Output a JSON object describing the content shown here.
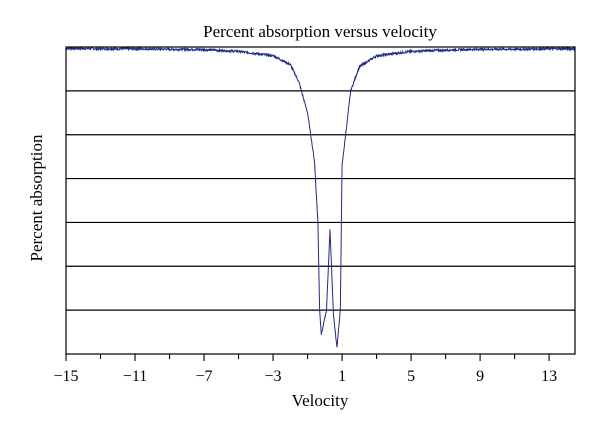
{
  "chart_data": {
    "type": "line",
    "title": "Percent absorption versus velocity",
    "xlabel": "Velocity",
    "ylabel": "Percent absorption",
    "xlim": [
      -15,
      14.5
    ],
    "ylim": [
      0,
      7
    ],
    "x_ticks": [
      -15,
      -11,
      -7,
      -3,
      1,
      5,
      9,
      13
    ],
    "grid": true,
    "legend": "none",
    "series": [
      {
        "color": "#1f2a8a",
        "x": [
          -15,
          -13,
          -11,
          -9,
          -7,
          -5,
          -3,
          -2,
          -1.5,
          -1,
          -0.6,
          -0.4,
          -0.3,
          -0.2,
          0.1,
          0.3,
          0.5,
          0.7,
          0.9,
          1,
          1.5,
          2,
          3,
          5,
          7,
          9,
          11,
          13,
          14.5
        ],
        "y": [
          6.97,
          6.96,
          6.96,
          6.95,
          6.94,
          6.9,
          6.8,
          6.6,
          6.2,
          5.5,
          4.4,
          3.0,
          1.0,
          0.45,
          1.0,
          2.85,
          0.9,
          0.15,
          1.0,
          4.3,
          6.0,
          6.55,
          6.8,
          6.9,
          6.93,
          6.95,
          6.95,
          6.96,
          6.96
        ]
      }
    ]
  }
}
